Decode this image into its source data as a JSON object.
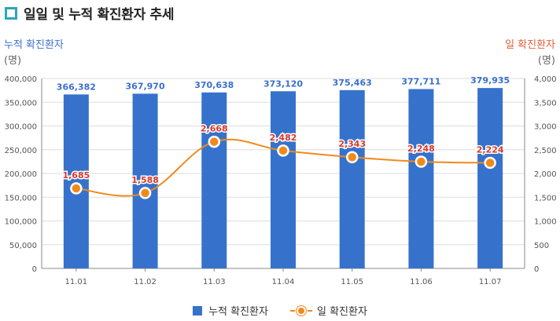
{
  "header": {
    "title": "일일 및 누적 확진환자 추세"
  },
  "axis_left": {
    "title": "누적 확진환자",
    "unit": "(명)"
  },
  "axis_right": {
    "title": "일 확진환자",
    "unit": "(명)"
  },
  "legend": {
    "bar_label": "누적 확진환자",
    "line_label": "일 확진환자"
  },
  "colors": {
    "bar": "#3672cc",
    "bar_label": "#3b6fce",
    "line": "#f08a1c",
    "line_label": "#d9382c",
    "grid": "#dddddd"
  },
  "chart_data": {
    "type": "bar",
    "categories": [
      "11.01",
      "11.02",
      "11.03",
      "11.04",
      "11.05",
      "11.06",
      "11.07"
    ],
    "series": [
      {
        "name": "누적 확진환자",
        "type": "bar",
        "axis": "left",
        "values": [
          366382,
          367970,
          370638,
          373120,
          375463,
          377711,
          379935
        ],
        "labels": [
          "366,382",
          "367,970",
          "370,638",
          "373,120",
          "375,463",
          "377,711",
          "379,935"
        ]
      },
      {
        "name": "일 확진환자",
        "type": "line",
        "axis": "right",
        "values": [
          1685,
          1588,
          2668,
          2482,
          2343,
          2248,
          2224
        ],
        "labels": [
          "1,685",
          "1,588",
          "2,668",
          "2,482",
          "2,343",
          "2,248",
          "2,224"
        ]
      }
    ],
    "y_left": {
      "range": [
        0,
        400000
      ],
      "ticks": [
        "0",
        "50,000",
        "100,000",
        "150,000",
        "200,000",
        "250,000",
        "300,000",
        "350,000",
        "400,000"
      ]
    },
    "y_right": {
      "range": [
        0,
        4000
      ],
      "ticks": [
        "0",
        "500",
        "1,000",
        "1,500",
        "2,000",
        "2,500",
        "3,000",
        "3,500",
        "4,000"
      ]
    },
    "grid": true,
    "legend_position": "bottom"
  }
}
